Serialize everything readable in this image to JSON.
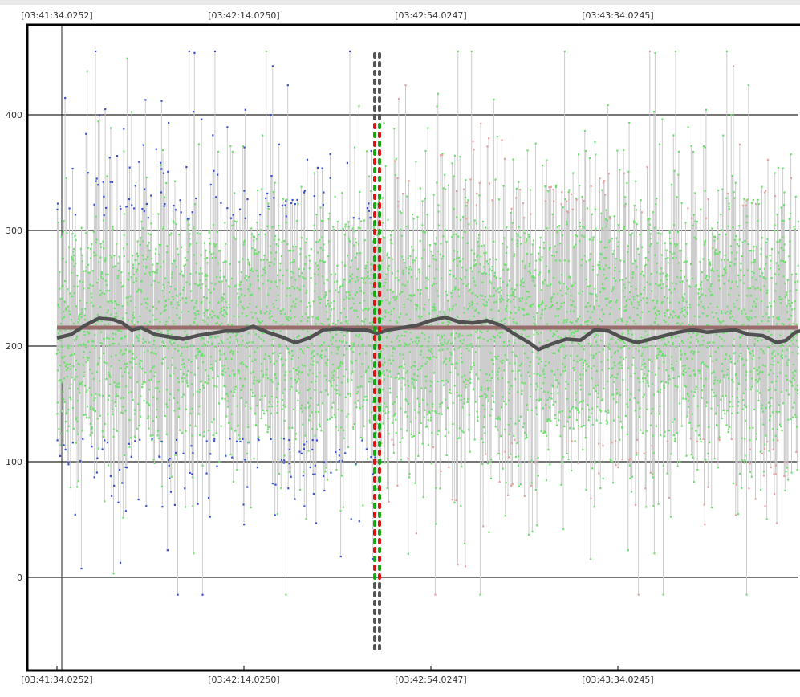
{
  "chart_data": {
    "type": "scatter",
    "title": "",
    "xlabel": "",
    "ylabel": "",
    "x_tick_labels": [
      "[03:41:34.0252]",
      "[03:42:14.0250]",
      "[03:42:54.0247]",
      "[03:43:34.0245]"
    ],
    "y_ticks": [
      0,
      100,
      200,
      300,
      400
    ],
    "ylim": [
      -60,
      460
    ],
    "x_range_seconds": [
      0,
      160
    ],
    "grid": "horizontal",
    "legend": "none",
    "marker_separator_x_seconds": 68.5,
    "reference_line_y": 216,
    "colors": {
      "background": "#ffffff",
      "grid": "#777777",
      "stems": "#c8c8c8",
      "points_green": "#6ee06e",
      "points_blue": "#3a4fd6",
      "points_pink": "#e8a0a0",
      "moving_average": "#505050",
      "reference_line": "#9a6c6c",
      "marker_red": "#dd1111",
      "marker_green": "#11aa11",
      "marker_gray": "#555555",
      "frame": "#000000"
    },
    "series": [
      {
        "type": "scatter",
        "description_range": [
          -15,
          455
        ],
        "center": 215,
        "spread": 75
      },
      {
        "type": "line",
        "points": [
          [
            0,
            207
          ],
          [
            3,
            210
          ],
          [
            6,
            218
          ],
          [
            9,
            224
          ],
          [
            12,
            223
          ],
          [
            14,
            220
          ],
          [
            16,
            214
          ],
          [
            18,
            216
          ],
          [
            21,
            210
          ],
          [
            24,
            208
          ],
          [
            27,
            206
          ],
          [
            30,
            209
          ],
          [
            33,
            211
          ],
          [
            36,
            213
          ],
          [
            39,
            213
          ],
          [
            42,
            217
          ],
          [
            45,
            212
          ],
          [
            48,
            208
          ],
          [
            51,
            203
          ],
          [
            54,
            207
          ],
          [
            57,
            214
          ],
          [
            60,
            215
          ],
          [
            63,
            214
          ],
          [
            66,
            214
          ],
          [
            68.5,
            211
          ],
          [
            71,
            214
          ],
          [
            74,
            216
          ],
          [
            77,
            218
          ],
          [
            80,
            222
          ],
          [
            83,
            225
          ],
          [
            86,
            221
          ],
          [
            89,
            220
          ],
          [
            92,
            222
          ],
          [
            95,
            218
          ],
          [
            98,
            210
          ],
          [
            101,
            203
          ],
          [
            103,
            197
          ],
          [
            106,
            202
          ],
          [
            109,
            206
          ],
          [
            112,
            205
          ],
          [
            115,
            214
          ],
          [
            118,
            213
          ],
          [
            121,
            207
          ],
          [
            124,
            203
          ],
          [
            127,
            206
          ],
          [
            130,
            209
          ],
          [
            133,
            212
          ],
          [
            136,
            214
          ],
          [
            139,
            212
          ],
          [
            142,
            213
          ],
          [
            145,
            214
          ],
          [
            148,
            210
          ],
          [
            151,
            209
          ],
          [
            154,
            203
          ],
          [
            156,
            205
          ],
          [
            158,
            212
          ],
          [
            160,
            214
          ]
        ]
      }
    ]
  }
}
